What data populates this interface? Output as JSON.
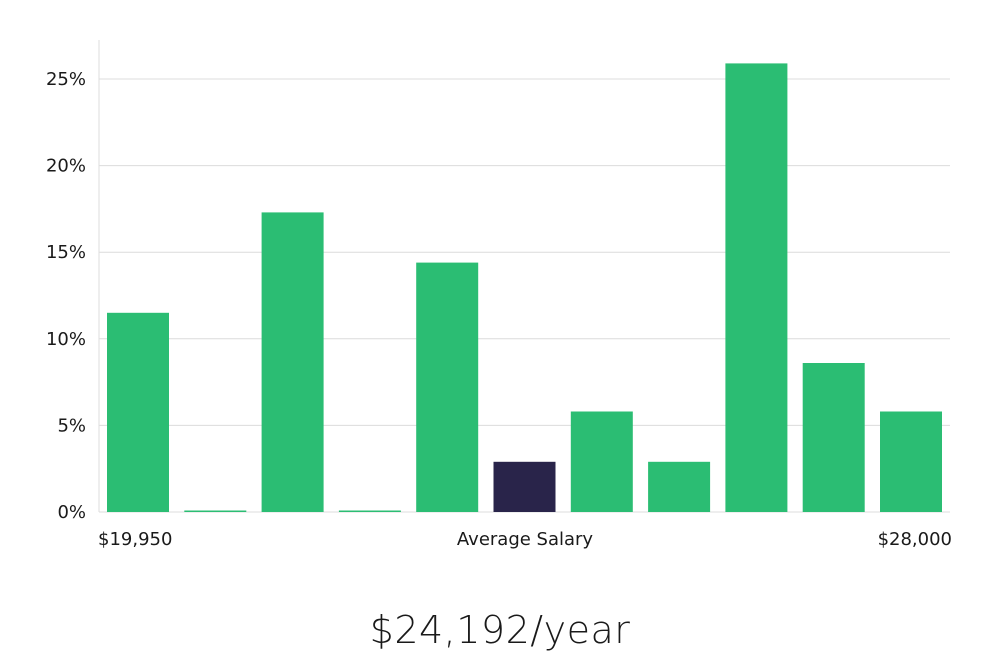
{
  "chart_data": {
    "type": "bar",
    "ylim": [
      0,
      27
    ],
    "yticks": [
      "0%",
      "5%",
      "10%",
      "15%",
      "20%",
      "25%"
    ],
    "ytick_values": [
      0,
      5,
      10,
      15,
      20,
      25
    ],
    "values": [
      11.5,
      0,
      17.3,
      0,
      14.4,
      2.9,
      5.8,
      2.9,
      25.9,
      8.6,
      5.8
    ],
    "highlight_index": 5,
    "bar_color": "#2bbd73",
    "highlight_color": "#29244a",
    "grid": true,
    "xlabel_min": "$19,950",
    "xlabel_center": "Average Salary",
    "xlabel_max": "$28,000"
  },
  "summary": {
    "salary_text": "$24,192/year"
  }
}
